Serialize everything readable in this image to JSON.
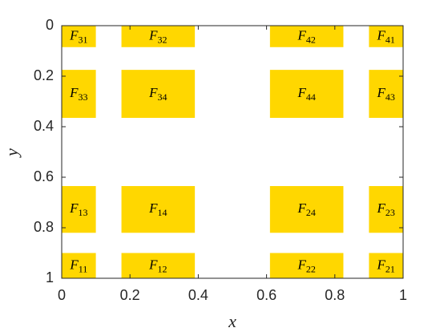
{
  "chart_data": {
    "type": "rect",
    "xlabel": "x",
    "ylabel": "y",
    "xlim": [
      0,
      1
    ],
    "ylim": [
      0,
      1
    ],
    "y_reversed": true,
    "xticks": [
      0,
      0.2,
      0.4,
      0.6,
      0.8,
      1
    ],
    "yticks": [
      0,
      0.2,
      0.4,
      0.6,
      0.8,
      1
    ],
    "color": "#ffd700",
    "rects": [
      {
        "x": [
          0,
          0.1
        ],
        "y": [
          0,
          0.085
        ],
        "label": {
          "main": "F",
          "sub": "31"
        }
      },
      {
        "x": [
          0.175,
          0.39
        ],
        "y": [
          0,
          0.085
        ],
        "label": {
          "main": "F",
          "sub": "32"
        }
      },
      {
        "x": [
          0.61,
          0.825
        ],
        "y": [
          0,
          0.085
        ],
        "label": {
          "main": "F",
          "sub": "42"
        }
      },
      {
        "x": [
          0.9,
          1
        ],
        "y": [
          0,
          0.085
        ],
        "label": {
          "main": "F",
          "sub": "41"
        }
      },
      {
        "x": [
          0,
          0.1
        ],
        "y": [
          0.175,
          0.365
        ],
        "label": {
          "main": "F",
          "sub": "33"
        }
      },
      {
        "x": [
          0.175,
          0.39
        ],
        "y": [
          0.175,
          0.365
        ],
        "label": {
          "main": "F",
          "sub": "34"
        }
      },
      {
        "x": [
          0.61,
          0.825
        ],
        "y": [
          0.175,
          0.365
        ],
        "label": {
          "main": "F",
          "sub": "44"
        }
      },
      {
        "x": [
          0.9,
          1
        ],
        "y": [
          0.175,
          0.365
        ],
        "label": {
          "main": "F",
          "sub": "43"
        }
      },
      {
        "x": [
          0,
          0.1
        ],
        "y": [
          0.635,
          0.82
        ],
        "label": {
          "main": "F",
          "sub": "13"
        }
      },
      {
        "x": [
          0.175,
          0.39
        ],
        "y": [
          0.635,
          0.82
        ],
        "label": {
          "main": "F",
          "sub": "14"
        }
      },
      {
        "x": [
          0.61,
          0.825
        ],
        "y": [
          0.635,
          0.82
        ],
        "label": {
          "main": "F",
          "sub": "24"
        }
      },
      {
        "x": [
          0.9,
          1
        ],
        "y": [
          0.635,
          0.82
        ],
        "label": {
          "main": "F",
          "sub": "23"
        }
      },
      {
        "x": [
          0,
          0.1
        ],
        "y": [
          0.9,
          1
        ],
        "label": {
          "main": "F",
          "sub": "11"
        }
      },
      {
        "x": [
          0.175,
          0.39
        ],
        "y": [
          0.9,
          1
        ],
        "label": {
          "main": "F",
          "sub": "12"
        }
      },
      {
        "x": [
          0.61,
          0.825
        ],
        "y": [
          0.9,
          1
        ],
        "label": {
          "main": "F",
          "sub": "22"
        }
      },
      {
        "x": [
          0.9,
          1
        ],
        "y": [
          0.9,
          1
        ],
        "label": {
          "main": "F",
          "sub": "21"
        }
      }
    ]
  }
}
